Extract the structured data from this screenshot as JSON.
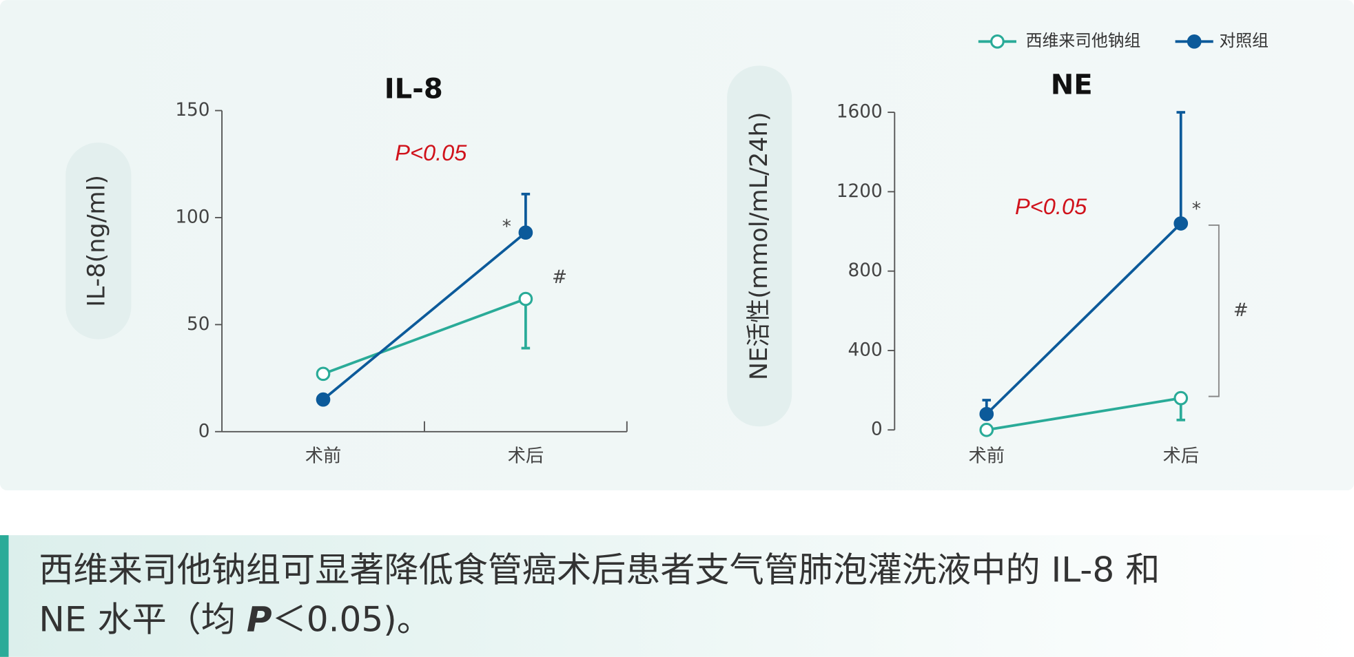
{
  "chart_data": [
    {
      "type": "line",
      "title": "IL-8",
      "ylabel": "IL-8(ng/ml)",
      "categories": [
        "术前",
        "术后"
      ],
      "series": [
        {
          "name": "西维来司他钠组",
          "color": "#2aab98",
          "marker": "open",
          "values": [
            27,
            62
          ],
          "errors": [
            null,
            23
          ],
          "error_direction": "down"
        },
        {
          "name": "对照组",
          "color": "#0c5a9a",
          "marker": "filled",
          "values": [
            15,
            93
          ],
          "errors": [
            null,
            18
          ],
          "error_direction": "up"
        }
      ],
      "ylim": [
        0,
        150
      ],
      "yticks": [
        0,
        50,
        100,
        150
      ],
      "p_label": "P<0.05",
      "star": "*",
      "hash": "#"
    },
    {
      "type": "line",
      "title": "NE",
      "ylabel": "NE活性(mmol/mL/24h)",
      "categories": [
        "术前",
        "术后"
      ],
      "series": [
        {
          "name": "西维来司他钠组",
          "color": "#2aab98",
          "marker": "open",
          "values": [
            0,
            160
          ],
          "errors": [
            null,
            110
          ],
          "error_direction": "down"
        },
        {
          "name": "对照组",
          "color": "#0c5a9a",
          "marker": "filled",
          "values": [
            80,
            1040
          ],
          "errors": [
            70,
            560
          ],
          "error_direction": "up"
        }
      ],
      "ylim": [
        0,
        1600
      ],
      "yticks": [
        0,
        400,
        800,
        1200,
        1600
      ],
      "p_label": "P<0.05",
      "star": "*",
      "hash": "#"
    }
  ],
  "caption": {
    "line_1": "西维来司他钠组可显著降低食管癌术后患者支气管肺泡灌洗液中的 IL-8 和",
    "line_2_before": "NE 水平（均 ",
    "p": "P",
    "line_2_after": "＜0.05)。"
  }
}
